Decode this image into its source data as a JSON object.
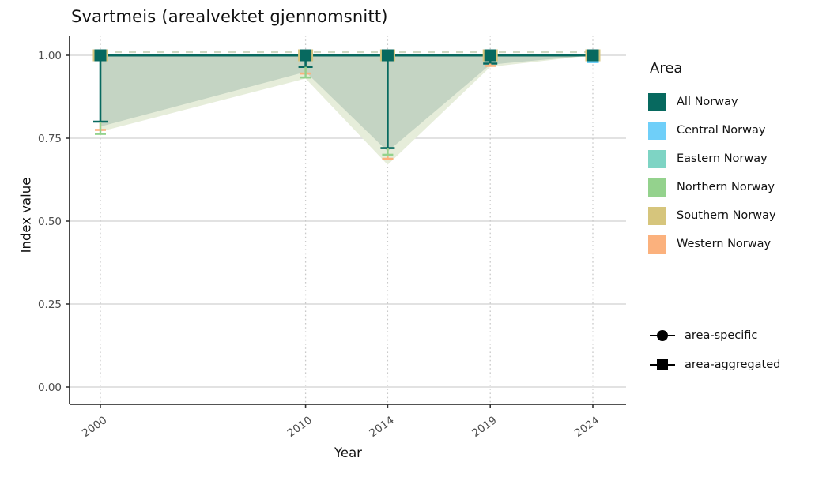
{
  "title": "Svartmeis (arealvektet gjennomsnitt)",
  "axes": {
    "x_label": "Year",
    "y_label": "Index value",
    "y_tick_labels": [
      "1.00",
      "0.75",
      "0.50",
      "0.25",
      "0.00"
    ],
    "y_tick_values": [
      1.0,
      0.75,
      0.5,
      0.25,
      0.0
    ],
    "x_tick_labels": [
      "2000",
      "2010",
      "2014",
      "2019",
      "2024"
    ],
    "x_tick_values": [
      2000,
      2010,
      2014,
      2019,
      2024
    ]
  },
  "legend_area": {
    "title": "Area",
    "items": [
      {
        "label": "All Norway",
        "color": "#07695f"
      },
      {
        "label": "Central Norway",
        "color": "#6fcff9"
      },
      {
        "label": "Eastern Norway",
        "color": "#7ed4c4"
      },
      {
        "label": "Northern Norway",
        "color": "#94d28d"
      },
      {
        "label": "Southern Norway",
        "color": "#d6c57c"
      },
      {
        "label": "Western Norway",
        "color": "#fbb17d"
      }
    ]
  },
  "legend_shapes": {
    "items": [
      {
        "label": "area-specific",
        "shape": "circle"
      },
      {
        "label": "area-aggregated",
        "shape": "square"
      }
    ]
  },
  "chart_data": {
    "type": "line",
    "title": "Svartmeis (arealvektet gjennomsnitt)",
    "xlabel": "Year",
    "ylabel": "Index value",
    "x": [
      2000,
      2010,
      2014,
      2019,
      2024
    ],
    "xlim": [
      1998.5,
      2025.6
    ],
    "ylim": [
      0.0,
      1.05
    ],
    "grid": {
      "h_solid": true,
      "v_dotted": true
    },
    "legend_position": "right",
    "series": [
      {
        "name": "All Norway",
        "role": "area-aggregated",
        "marker": "square",
        "color": "#07695f",
        "values": [
          1.0,
          1.0,
          1.0,
          1.0,
          1.0
        ],
        "err_low": [
          0.8,
          0.965,
          0.72,
          0.975,
          1.0
        ],
        "err_high": [
          1.0,
          1.0,
          1.0,
          1.0,
          1.0
        ]
      }
    ],
    "secondary_error_caps": [
      {
        "name": "Western Norway",
        "color": "#fbb17d",
        "low": [
          0.775,
          0.945,
          0.688,
          0.968,
          null
        ],
        "high": [
          null,
          null,
          1.012,
          null,
          null
        ]
      },
      {
        "name": "Northern Norway",
        "color": "#94d28d",
        "low": [
          0.763,
          0.933,
          0.7,
          null,
          null
        ],
        "high": [
          null,
          null,
          null,
          null,
          null
        ]
      }
    ],
    "ribbons": [
      {
        "name": "confidence-outer",
        "color": "#e6edda",
        "upper": [
          1.0,
          1.0,
          1.0,
          1.0,
          1.0
        ],
        "lower": [
          0.77,
          0.93,
          0.67,
          0.965,
          1.0
        ]
      },
      {
        "name": "confidence-inner",
        "color": "#c4d4c3",
        "upper": [
          1.0,
          1.0,
          1.0,
          1.0,
          1.0
        ],
        "lower": [
          0.785,
          0.95,
          0.71,
          0.972,
          1.0
        ]
      }
    ],
    "overlay_dashed_line": {
      "color": "#cfd8c3",
      "value": 1.01
    },
    "marker_back_colors": {
      "all": "#d6c57c",
      "last_extra": "#6fcff9"
    }
  }
}
